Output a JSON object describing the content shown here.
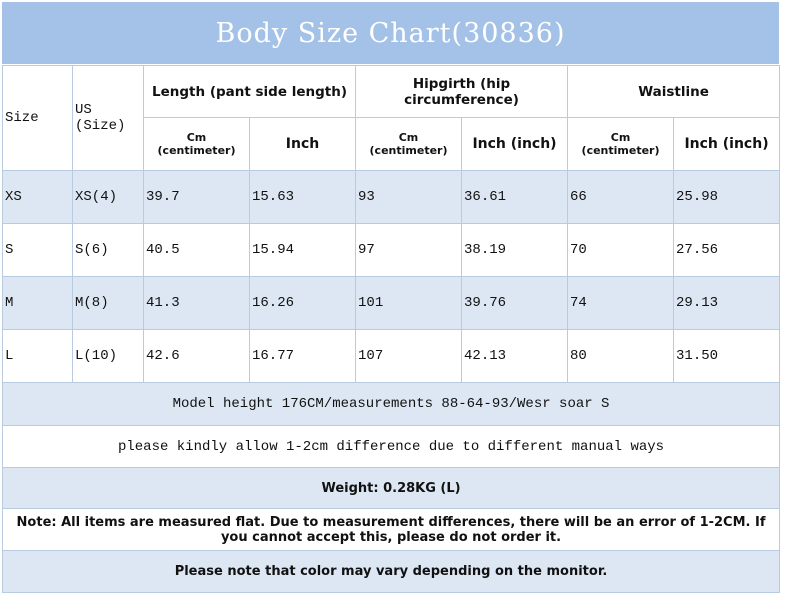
{
  "title": "Body Size Chart(30836)",
  "table": {
    "header": [
      "Size",
      "US (Size)",
      "Length (pant side length)",
      "Hipgirth (hip circumference)",
      "Waistline"
    ],
    "subheader": [
      "Cm (centimeter)",
      "Inch",
      "Cm (centimeter)",
      "Inch (inch)",
      "Cm (centimeter)",
      "Inch (inch)"
    ],
    "rows": [
      [
        "XS",
        "XS(4)",
        "39.7",
        "15.63",
        "93",
        "36.61",
        "66",
        "25.98"
      ],
      [
        "S",
        "S(6)",
        "40.5",
        "15.94",
        "97",
        "38.19",
        "70",
        "27.56"
      ],
      [
        "M",
        "M(8)",
        "41.3",
        "16.26",
        "101",
        "39.76",
        "74",
        "29.13"
      ],
      [
        "L",
        "L(10)",
        "42.6",
        "16.77",
        "107",
        "42.13",
        "80",
        "31.50"
      ]
    ]
  },
  "notes": [
    "Model height 176CM/measurements 88-64-93/Wesr soar S",
    "please kindly allow 1-2cm difference due to different manual ways",
    "Weight: 0.28KG (L)",
    "Note: All items are measured flat. Due to measurement differences, there will be an error of 1-2CM. If you cannot accept this, please do not order it.",
    "Please note that color may vary depending on the monitor."
  ]
}
